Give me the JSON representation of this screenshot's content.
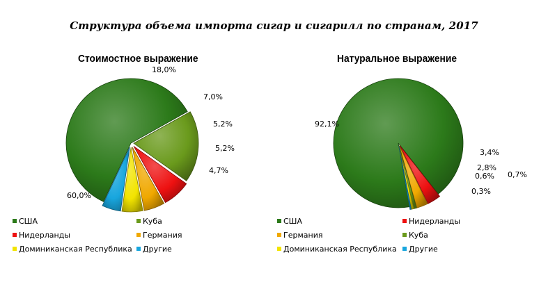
{
  "title": "Структура объема импорта сигар и сигарилл по странам, 2017",
  "colors": {
    "США": "#2c7a1a",
    "Куба": "#6a9a1c",
    "Нидерланды": "#ee1111",
    "Германия": "#f0a800",
    "Доминиканская Республика": "#f2e400",
    "Другие": "#18a6de"
  },
  "chart_data": [
    {
      "type": "pie",
      "title": "Стоимостное выражение",
      "slices": [
        {
          "name": "США",
          "value": 60.0,
          "label": "60,0%"
        },
        {
          "name": "Куба",
          "value": 18.0,
          "label": "18,0%"
        },
        {
          "name": "Нидерланды",
          "value": 7.0,
          "label": "7,0%"
        },
        {
          "name": "Германия",
          "value": 5.2,
          "label": "5,2%"
        },
        {
          "name": "Доминиканская Республика",
          "value": 5.2,
          "label": "5,2%"
        },
        {
          "name": "Другие",
          "value": 4.7,
          "label": "4,7%"
        }
      ],
      "legend": [
        [
          "США",
          "Куба"
        ],
        [
          "Нидерланды",
          "Германия"
        ],
        [
          "Доминиканская Республика",
          "Другие"
        ]
      ]
    },
    {
      "type": "pie",
      "title": "Натуральное выражение",
      "slices": [
        {
          "name": "США",
          "value": 92.1,
          "label": "92,1%"
        },
        {
          "name": "Нидерланды",
          "value": 3.4,
          "label": "3,4%"
        },
        {
          "name": "Германия",
          "value": 2.8,
          "label": "2,8%"
        },
        {
          "name": "Куба",
          "value": 0.7,
          "label": "0,7%"
        },
        {
          "name": "Доминиканская Республика",
          "value": 0.6,
          "label": "0,6%"
        },
        {
          "name": "Другие",
          "value": 0.3,
          "label": "0,3%"
        }
      ],
      "legend": [
        [
          "США",
          "Нидерланды"
        ],
        [
          "Германия",
          "Куба"
        ],
        [
          "Доминиканская Республика",
          "Другие"
        ]
      ]
    }
  ]
}
